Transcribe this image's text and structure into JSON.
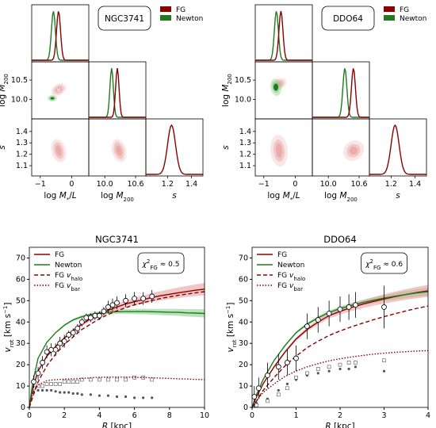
{
  "colors": {
    "fg": "#8b0000",
    "newton": "#1e7b1e",
    "fg_fill": "#e8a0a0",
    "newton_fill": "#8fcf8f"
  },
  "corner_panels": [
    {
      "galaxy": "NGC3741",
      "legend": [
        "FG",
        "Newton"
      ],
      "x_labels": [
        "log M* /L",
        "log M200",
        "s"
      ],
      "y_labels": [
        "log M200",
        "s"
      ],
      "x_ticks": {
        "logML": [
          "−1",
          "0"
        ],
        "logM200": [
          "10.0",
          "10.6"
        ],
        "s": [
          "1.2",
          "1.4"
        ]
      },
      "y_ticks": {
        "logM200": [
          "10.5",
          "10.0"
        ],
        "s": [
          "1.4",
          "1.3",
          "1.2",
          "1.1"
        ]
      }
    },
    {
      "galaxy": "DDO64",
      "legend": [
        "FG",
        "Newton"
      ],
      "x_labels": [
        "log M* /L",
        "log M200",
        "s"
      ],
      "y_labels": [
        "log M200",
        "s"
      ],
      "x_ticks": {
        "logML": [
          "−1",
          "0"
        ],
        "logM200": [
          "10.0",
          "10.6"
        ],
        "s": [
          "1.2",
          "1.4"
        ]
      },
      "y_ticks": {
        "logM200": [
          "10.5",
          "10.0"
        ],
        "s": [
          "1.4",
          "1.3",
          "1.2",
          "1.1"
        ]
      }
    }
  ],
  "chart_data": [
    {
      "type": "line",
      "title": "NGC3741",
      "xlabel": "R [kpc]",
      "ylabel": "v_rot [km s^-1]",
      "xlim": [
        0,
        10
      ],
      "ylim": [
        0,
        75
      ],
      "x_ticks": [
        "0",
        "2",
        "4",
        "6",
        "8",
        "10"
      ],
      "y_ticks": [
        "0",
        "10",
        "20",
        "30",
        "40",
        "50",
        "60",
        "70"
      ],
      "chi2_label": "χ²FG ≈ 0.5",
      "legend": [
        "FG",
        "Newton",
        "FG v_halo",
        "FG v_bar"
      ],
      "series": [
        {
          "name": "FG",
          "x": [
            0,
            0.2,
            0.5,
            1,
            1.5,
            2,
            2.5,
            3,
            3.5,
            4,
            4.5,
            5,
            5.5,
            6,
            6.5,
            7,
            7.5,
            8,
            8.5,
            9,
            9.5,
            10
          ],
          "y": [
            0,
            9,
            17,
            24,
            28.5,
            32.5,
            36,
            39,
            41.5,
            43.5,
            45.5,
            47,
            48.5,
            49.5,
            50.5,
            51.5,
            52.3,
            53,
            53.7,
            54.3,
            54.9,
            55.4
          ]
        },
        {
          "name": "Newton",
          "x": [
            0,
            0.2,
            0.5,
            1,
            1.5,
            2,
            2.5,
            3,
            3.5,
            4,
            4.5,
            5,
            5.5,
            6,
            6.5,
            7,
            7.5,
            8,
            8.5,
            9,
            9.5,
            10
          ],
          "y": [
            0,
            12,
            23,
            30.5,
            35,
            38.5,
            41,
            42.5,
            43.5,
            44.2,
            44.6,
            44.8,
            44.9,
            44.9,
            44.9,
            44.8,
            44.7,
            44.6,
            44.5,
            44.3,
            44.2,
            44
          ]
        },
        {
          "name": "FG v_halo",
          "x": [
            0,
            0.2,
            0.5,
            1,
            1.5,
            2,
            2.5,
            3,
            3.5,
            4,
            4.5,
            5,
            5.5,
            6,
            6.5,
            7,
            7.5,
            8,
            8.5,
            9,
            9.5,
            10
          ],
          "y": [
            0,
            5,
            12,
            19.5,
            25,
            29.5,
            33,
            36.5,
            39,
            41.5,
            43.5,
            45.2,
            46.7,
            48,
            49.1,
            50.1,
            51,
            51.8,
            52.5,
            53.1,
            53.7,
            54.2
          ]
        },
        {
          "name": "FG v_bar",
          "x": [
            0,
            0.2,
            0.5,
            1,
            1.5,
            2,
            2.5,
            3,
            3.5,
            4,
            4.5,
            5,
            5.5,
            6,
            6.5,
            7,
            7.5,
            8,
            8.5,
            9,
            9.5,
            10
          ],
          "y": [
            0,
            7,
            10.5,
            12.5,
            13,
            13.2,
            13.4,
            13.6,
            13.9,
            14.1,
            14.2,
            14.2,
            14.2,
            14.1,
            14,
            13.9,
            13.7,
            13.6,
            13.4,
            13.3,
            13.1,
            13
          ]
        }
      ],
      "data_points": {
        "x": [
          0.25,
          0.5,
          0.75,
          1,
          1.25,
          1.5,
          1.75,
          2,
          2.25,
          2.5,
          2.75,
          3,
          3.25,
          3.5,
          3.75,
          4,
          4.25,
          4.5,
          4.75,
          5,
          5.5,
          6,
          6.5,
          7
        ],
        "y": [
          12,
          16,
          21,
          26,
          27,
          27,
          30,
          31,
          34,
          35,
          37,
          40,
          42,
          42,
          43,
          43,
          45,
          47,
          48,
          49,
          50,
          51,
          51,
          52
        ],
        "err": [
          3,
          3,
          3,
          3,
          3,
          3,
          3,
          3,
          2,
          2,
          2,
          2,
          2,
          2,
          2,
          2,
          2,
          3,
          3,
          3,
          3,
          3,
          3,
          3
        ]
      },
      "gas_points": {
        "x": [
          0.25,
          0.5,
          0.75,
          1,
          1.25,
          1.5,
          1.75,
          2,
          2.25,
          2.5,
          2.75,
          3,
          3.5,
          4,
          4.5,
          5,
          5.5,
          6,
          6.5,
          7
        ],
        "y": [
          9,
          10,
          10,
          11,
          11,
          11,
          11,
          12,
          12,
          12,
          12,
          13,
          13,
          13,
          13,
          13,
          13,
          14,
          14,
          13
        ]
      },
      "star_points": {
        "x": [
          0.25,
          0.5,
          0.75,
          1,
          1.25,
          1.5,
          1.75,
          2,
          2.25,
          2.5,
          2.75,
          3,
          3.5,
          4,
          4.5,
          5,
          5.5,
          6,
          6.5,
          7
        ],
        "y": [
          7,
          8,
          8,
          8,
          8,
          7.5,
          7,
          7,
          7,
          6.5,
          6.5,
          6,
          6,
          5.5,
          5.5,
          5,
          5,
          4.5,
          4.5,
          4.5
        ]
      }
    },
    {
      "type": "line",
      "title": "DDO64",
      "xlabel": "R [kpc]",
      "ylabel": "v_rot [km s^-1]",
      "xlim": [
        0,
        4
      ],
      "ylim": [
        0,
        75
      ],
      "x_ticks": [
        "0",
        "1",
        "2",
        "3",
        "4"
      ],
      "y_ticks": [
        "0",
        "10",
        "20",
        "30",
        "40",
        "50",
        "60",
        "70"
      ],
      "chi2_label": "χ²FG ≈ 0.6",
      "legend": [
        "FG",
        "Newton",
        "FG v_halo",
        "FG v_bar"
      ],
      "series": [
        {
          "name": "FG",
          "x": [
            0,
            0.1,
            0.25,
            0.5,
            0.75,
            1,
            1.25,
            1.5,
            1.75,
            2,
            2.25,
            2.5,
            2.75,
            3,
            3.25,
            3.5,
            3.75,
            4
          ],
          "y": [
            0,
            5,
            11,
            19,
            26,
            32,
            36.5,
            40,
            43,
            45,
            46.8,
            48.3,
            49.6,
            50.8,
            51.9,
            52.9,
            53.8,
            54.6
          ]
        },
        {
          "name": "Newton",
          "x": [
            0,
            0.1,
            0.25,
            0.5,
            0.75,
            1,
            1.25,
            1.5,
            1.75,
            2,
            2.25,
            2.5,
            2.75,
            3,
            3.25,
            3.5,
            3.75,
            4
          ],
          "y": [
            0,
            6,
            13,
            22,
            29,
            35,
            39,
            42,
            44.5,
            46.3,
            47.8,
            49.1,
            50.2,
            51.2,
            52.1,
            52.9,
            53.6,
            54.2
          ]
        },
        {
          "name": "FG v_halo",
          "x": [
            0,
            0.1,
            0.25,
            0.5,
            0.75,
            1,
            1.25,
            1.5,
            1.75,
            2,
            2.25,
            2.5,
            2.75,
            3,
            3.25,
            3.5,
            3.75,
            4
          ],
          "y": [
            0,
            3,
            8,
            14,
            19.5,
            24,
            28,
            31,
            33.7,
            35.8,
            37.7,
            39.4,
            41,
            42.5,
            43.9,
            45.2,
            46.4,
            47.5
          ]
        },
        {
          "name": "FG v_bar",
          "x": [
            0,
            0.1,
            0.25,
            0.5,
            0.75,
            1,
            1.25,
            1.5,
            1.75,
            2,
            2.25,
            2.5,
            2.75,
            3,
            3.25,
            3.5,
            3.75,
            4
          ],
          "y": [
            0,
            3,
            7,
            11,
            14.5,
            17,
            19,
            20.5,
            21.8,
            22.8,
            23.6,
            24.3,
            24.9,
            25.4,
            25.8,
            26.1,
            26.4,
            26.6
          ]
        }
      ],
      "data_points": {
        "x": [
          0.05,
          0.15,
          0.35,
          0.6,
          0.8,
          1,
          1.25,
          1.5,
          1.75,
          2,
          2.2,
          2.35,
          3
        ],
        "y": [
          5,
          9,
          15,
          19,
          21,
          23,
          38,
          41,
          44,
          46,
          47,
          48,
          47
        ],
        "err": [
          5,
          5,
          6,
          6,
          6,
          6,
          6,
          6,
          6,
          6,
          6,
          6,
          10
        ]
      },
      "gas_points": {
        "x": [
          0.1,
          0.35,
          0.6,
          0.8,
          1,
          1.25,
          1.5,
          1.75,
          2,
          2.2,
          2.35,
          3
        ],
        "y": [
          1,
          3,
          6,
          9,
          14,
          16,
          18,
          19,
          20,
          21,
          21,
          22
        ]
      },
      "star_points": {
        "x": [
          0.1,
          0.35,
          0.6,
          0.8,
          1,
          1.25,
          1.5,
          1.75,
          2,
          2.2,
          2.35,
          3
        ],
        "y": [
          2,
          4,
          8,
          11,
          13,
          15,
          16,
          17,
          18,
          18,
          19,
          17
        ]
      }
    }
  ]
}
